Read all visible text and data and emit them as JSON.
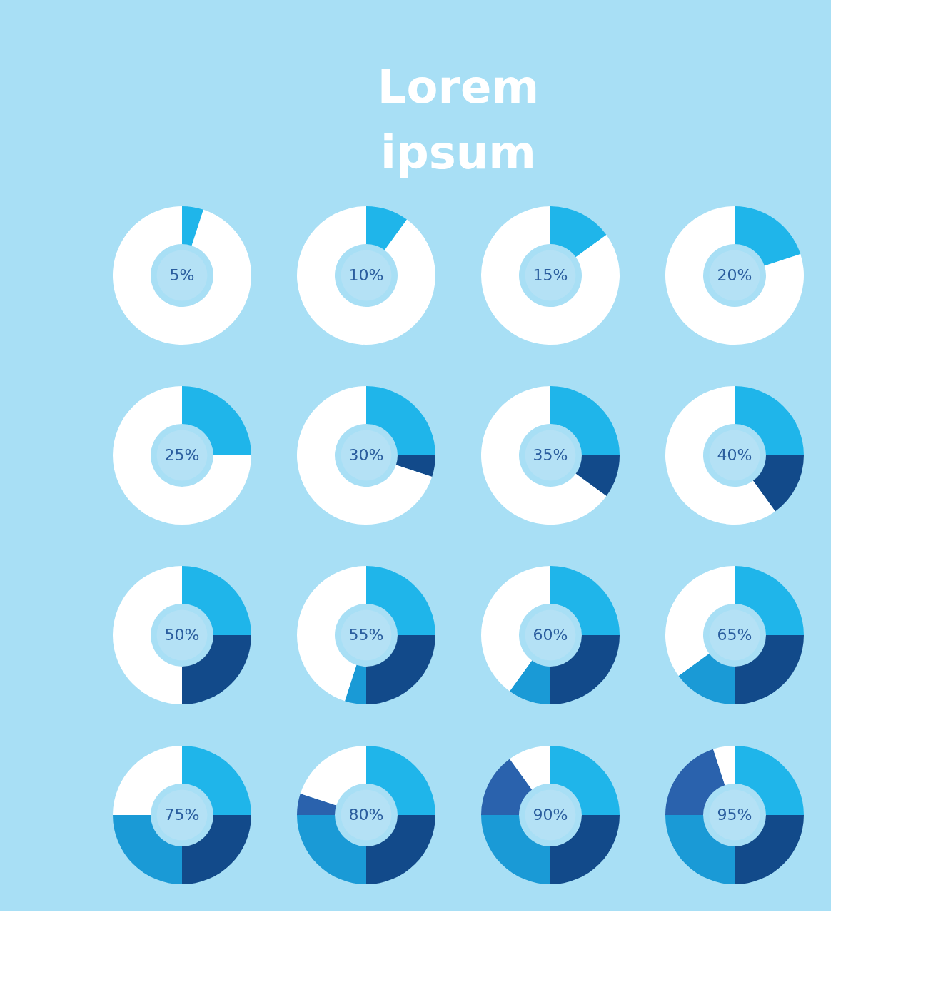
{
  "chart_data": [
    {
      "type": "donut",
      "title": "Lorem ipsum",
      "categories": [
        null,
        null
      ],
      "values": [
        5,
        95
      ],
      "colors": [
        "#1fb5ea",
        "#ffffff"
      ],
      "annotations": [
        "5%"
      ]
    },
    {
      "type": "donut",
      "categories": [
        null,
        null
      ],
      "values": [
        10,
        90
      ],
      "colors": [
        "#1fb5ea",
        "#ffffff"
      ],
      "annotations": [
        "10%"
      ]
    },
    {
      "type": "donut",
      "categories": [
        null,
        null
      ],
      "values": [
        15,
        85
      ],
      "colors": [
        "#1fb5ea",
        "#ffffff"
      ],
      "annotations": [
        "15%"
      ]
    },
    {
      "type": "donut",
      "categories": [
        null,
        null
      ],
      "values": [
        20,
        80
      ],
      "colors": [
        "#1fb5ea",
        "#ffffff"
      ],
      "annotations": [
        "20%"
      ]
    },
    {
      "type": "donut",
      "categories": [
        null,
        null
      ],
      "values": [
        25,
        75
      ],
      "colors": [
        "#1fb5ea",
        "#ffffff"
      ],
      "annotations": [
        "25%"
      ]
    },
    {
      "type": "donut",
      "categories": [
        null,
        null,
        null
      ],
      "values": [
        25,
        5,
        70
      ],
      "colors": [
        "#1fb5ea",
        "#124a8a",
        "#ffffff"
      ],
      "annotations": [
        "30%"
      ]
    },
    {
      "type": "donut",
      "categories": [
        null,
        null,
        null
      ],
      "values": [
        25,
        10,
        65
      ],
      "colors": [
        "#1fb5ea",
        "#124a8a",
        "#ffffff"
      ],
      "annotations": [
        "35%"
      ]
    },
    {
      "type": "donut",
      "categories": [
        null,
        null,
        null
      ],
      "values": [
        25,
        15,
        60
      ],
      "colors": [
        "#1fb5ea",
        "#124a8a",
        "#ffffff"
      ],
      "annotations": [
        "40%"
      ]
    },
    {
      "type": "donut",
      "categories": [
        null,
        null,
        null
      ],
      "values": [
        25,
        25,
        50
      ],
      "colors": [
        "#1fb5ea",
        "#124a8a",
        "#ffffff"
      ],
      "annotations": [
        "50%"
      ]
    },
    {
      "type": "donut",
      "categories": [
        null,
        null,
        null,
        null
      ],
      "values": [
        25,
        25,
        5,
        45
      ],
      "colors": [
        "#1fb5ea",
        "#124a8a",
        "#1a9ad6",
        "#ffffff"
      ],
      "annotations": [
        "55%"
      ]
    },
    {
      "type": "donut",
      "categories": [
        null,
        null,
        null,
        null
      ],
      "values": [
        25,
        25,
        10,
        40
      ],
      "colors": [
        "#1fb5ea",
        "#124a8a",
        "#1a9ad6",
        "#ffffff"
      ],
      "annotations": [
        "60%"
      ]
    },
    {
      "type": "donut",
      "categories": [
        null,
        null,
        null,
        null
      ],
      "values": [
        25,
        25,
        15,
        35
      ],
      "colors": [
        "#1fb5ea",
        "#124a8a",
        "#1a9ad6",
        "#ffffff"
      ],
      "annotations": [
        "65%"
      ]
    },
    {
      "type": "donut",
      "categories": [
        null,
        null,
        null,
        null
      ],
      "values": [
        25,
        25,
        25,
        25
      ],
      "colors": [
        "#1fb5ea",
        "#124a8a",
        "#1a9ad6",
        "#ffffff"
      ],
      "annotations": [
        "75%"
      ]
    },
    {
      "type": "donut",
      "categories": [
        null,
        null,
        null,
        null,
        null
      ],
      "values": [
        25,
        25,
        25,
        5,
        20
      ],
      "colors": [
        "#1fb5ea",
        "#124a8a",
        "#1a9ad6",
        "#2a62ad",
        "#ffffff"
      ],
      "annotations": [
        "80%"
      ]
    },
    {
      "type": "donut",
      "categories": [
        null,
        null,
        null,
        null,
        null
      ],
      "values": [
        25,
        25,
        25,
        15,
        10
      ],
      "colors": [
        "#1fb5ea",
        "#124a8a",
        "#1a9ad6",
        "#2a62ad",
        "#ffffff"
      ],
      "annotations": [
        "90%"
      ]
    },
    {
      "type": "donut",
      "categories": [
        null,
        null,
        null,
        null,
        null
      ],
      "values": [
        25,
        25,
        25,
        20,
        5
      ],
      "colors": [
        "#1fb5ea",
        "#124a8a",
        "#1a9ad6",
        "#2a62ad",
        "#ffffff"
      ],
      "annotations": [
        "95%"
      ]
    }
  ]
}
